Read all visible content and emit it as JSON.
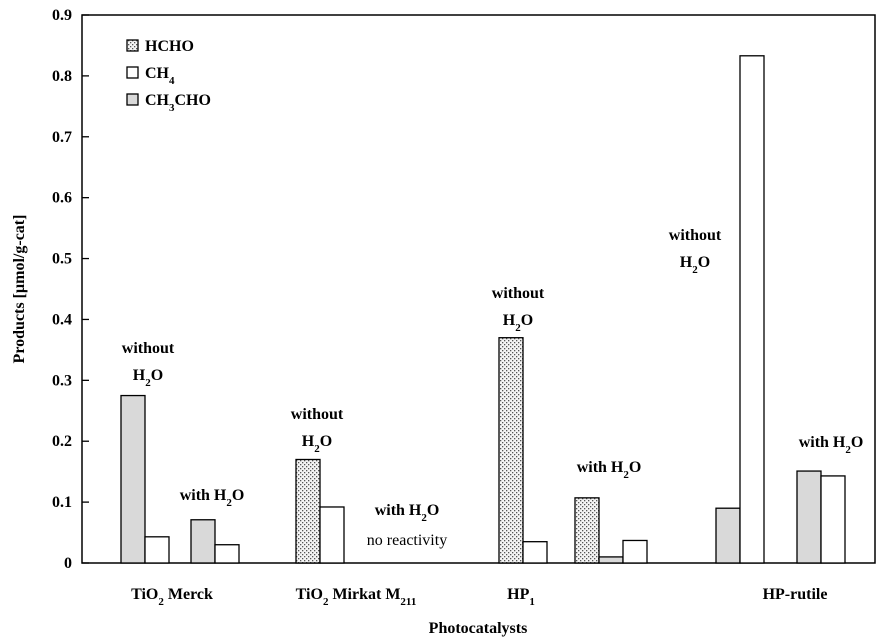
{
  "chart_data": {
    "type": "bar",
    "xlabel": "Photocatalysts",
    "ylabel": "Products [µmol/g-cat]",
    "ylim": [
      0,
      0.9
    ],
    "yticks": [
      "0",
      "0.1",
      "0.2",
      "0.3",
      "0.4",
      "0.5",
      "0.6",
      "0.7",
      "0.8",
      "0.9"
    ],
    "grid": false,
    "legend_placement": "top-left",
    "series": [
      {
        "name": "HCHO",
        "fill": "dots",
        "color": "#dcdcdc"
      },
      {
        "name": "CH4",
        "fill": "white",
        "color": "#ffffff"
      },
      {
        "name": "CH3CHO",
        "fill": "gray",
        "color": "#d9d9d9"
      }
    ],
    "categories": [
      {
        "name": "TiO2 Merck",
        "groups": [
          {
            "condition": "without H2O",
            "bars": [
              {
                "series": "CH3CHO",
                "value": 0.275
              },
              {
                "series": "CH4",
                "value": 0.043
              }
            ]
          },
          {
            "condition": "with H2O",
            "bars": [
              {
                "series": "CH3CHO",
                "value": 0.071
              },
              {
                "series": "CH4",
                "value": 0.03
              }
            ]
          }
        ]
      },
      {
        "name": "TiO2 Mirkat M211",
        "groups": [
          {
            "condition": "without H2O",
            "bars": [
              {
                "series": "HCHO",
                "value": 0.17
              },
              {
                "series": "CH4",
                "value": 0.092
              }
            ]
          },
          {
            "condition": "with H2O",
            "note": "no reactivity",
            "bars": []
          }
        ]
      },
      {
        "name": "HP1",
        "groups": [
          {
            "condition": "without H2O",
            "bars": [
              {
                "series": "HCHO",
                "value": 0.37
              },
              {
                "series": "CH4",
                "value": 0.035
              }
            ]
          },
          {
            "condition": "with H2O",
            "bars": [
              {
                "series": "HCHO",
                "value": 0.107
              },
              {
                "series": "CH3CHO",
                "value": 0.01
              },
              {
                "series": "CH4",
                "value": 0.037
              }
            ]
          }
        ]
      },
      {
        "name": "HP-rutile",
        "groups": [
          {
            "condition": "without H2O",
            "bars": [
              {
                "series": "CH3CHO",
                "value": 0.09
              },
              {
                "series": "CH4",
                "value": 0.833
              }
            ]
          },
          {
            "condition": "with H2O",
            "bars": [
              {
                "series": "CH3CHO",
                "value": 0.151
              },
              {
                "series": "CH4",
                "value": 0.143
              }
            ]
          }
        ]
      }
    ]
  }
}
